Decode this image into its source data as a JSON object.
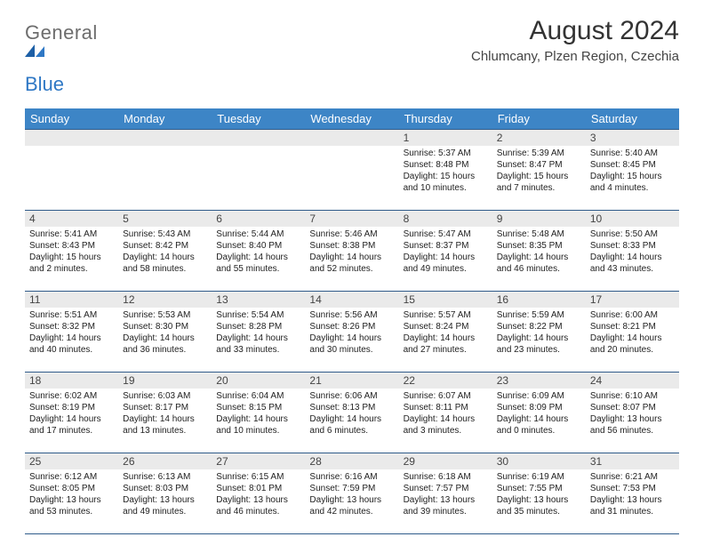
{
  "colors": {
    "header_bg": "#3d85c6",
    "header_text": "#ffffff",
    "row_border": "#2f5b8a",
    "daynum_bg": "#eaeaea",
    "body_text": "#222222",
    "logo_accent": "#2f78c5"
  },
  "logo": {
    "word1": "General",
    "word2": "Blue"
  },
  "title": "August 2024",
  "subtitle": "Chlumcany, Plzen Region, Czechia",
  "weekdays": [
    "Sunday",
    "Monday",
    "Tuesday",
    "Wednesday",
    "Thursday",
    "Friday",
    "Saturday"
  ],
  "weeks": [
    [
      {
        "n": "",
        "sr": "",
        "ss": "",
        "dl": ""
      },
      {
        "n": "",
        "sr": "",
        "ss": "",
        "dl": ""
      },
      {
        "n": "",
        "sr": "",
        "ss": "",
        "dl": ""
      },
      {
        "n": "",
        "sr": "",
        "ss": "",
        "dl": ""
      },
      {
        "n": "1",
        "sr": "Sunrise: 5:37 AM",
        "ss": "Sunset: 8:48 PM",
        "dl": "Daylight: 15 hours and 10 minutes."
      },
      {
        "n": "2",
        "sr": "Sunrise: 5:39 AM",
        "ss": "Sunset: 8:47 PM",
        "dl": "Daylight: 15 hours and 7 minutes."
      },
      {
        "n": "3",
        "sr": "Sunrise: 5:40 AM",
        "ss": "Sunset: 8:45 PM",
        "dl": "Daylight: 15 hours and 4 minutes."
      }
    ],
    [
      {
        "n": "4",
        "sr": "Sunrise: 5:41 AM",
        "ss": "Sunset: 8:43 PM",
        "dl": "Daylight: 15 hours and 2 minutes."
      },
      {
        "n": "5",
        "sr": "Sunrise: 5:43 AM",
        "ss": "Sunset: 8:42 PM",
        "dl": "Daylight: 14 hours and 58 minutes."
      },
      {
        "n": "6",
        "sr": "Sunrise: 5:44 AM",
        "ss": "Sunset: 8:40 PM",
        "dl": "Daylight: 14 hours and 55 minutes."
      },
      {
        "n": "7",
        "sr": "Sunrise: 5:46 AM",
        "ss": "Sunset: 8:38 PM",
        "dl": "Daylight: 14 hours and 52 minutes."
      },
      {
        "n": "8",
        "sr": "Sunrise: 5:47 AM",
        "ss": "Sunset: 8:37 PM",
        "dl": "Daylight: 14 hours and 49 minutes."
      },
      {
        "n": "9",
        "sr": "Sunrise: 5:48 AM",
        "ss": "Sunset: 8:35 PM",
        "dl": "Daylight: 14 hours and 46 minutes."
      },
      {
        "n": "10",
        "sr": "Sunrise: 5:50 AM",
        "ss": "Sunset: 8:33 PM",
        "dl": "Daylight: 14 hours and 43 minutes."
      }
    ],
    [
      {
        "n": "11",
        "sr": "Sunrise: 5:51 AM",
        "ss": "Sunset: 8:32 PM",
        "dl": "Daylight: 14 hours and 40 minutes."
      },
      {
        "n": "12",
        "sr": "Sunrise: 5:53 AM",
        "ss": "Sunset: 8:30 PM",
        "dl": "Daylight: 14 hours and 36 minutes."
      },
      {
        "n": "13",
        "sr": "Sunrise: 5:54 AM",
        "ss": "Sunset: 8:28 PM",
        "dl": "Daylight: 14 hours and 33 minutes."
      },
      {
        "n": "14",
        "sr": "Sunrise: 5:56 AM",
        "ss": "Sunset: 8:26 PM",
        "dl": "Daylight: 14 hours and 30 minutes."
      },
      {
        "n": "15",
        "sr": "Sunrise: 5:57 AM",
        "ss": "Sunset: 8:24 PM",
        "dl": "Daylight: 14 hours and 27 minutes."
      },
      {
        "n": "16",
        "sr": "Sunrise: 5:59 AM",
        "ss": "Sunset: 8:22 PM",
        "dl": "Daylight: 14 hours and 23 minutes."
      },
      {
        "n": "17",
        "sr": "Sunrise: 6:00 AM",
        "ss": "Sunset: 8:21 PM",
        "dl": "Daylight: 14 hours and 20 minutes."
      }
    ],
    [
      {
        "n": "18",
        "sr": "Sunrise: 6:02 AM",
        "ss": "Sunset: 8:19 PM",
        "dl": "Daylight: 14 hours and 17 minutes."
      },
      {
        "n": "19",
        "sr": "Sunrise: 6:03 AM",
        "ss": "Sunset: 8:17 PM",
        "dl": "Daylight: 14 hours and 13 minutes."
      },
      {
        "n": "20",
        "sr": "Sunrise: 6:04 AM",
        "ss": "Sunset: 8:15 PM",
        "dl": "Daylight: 14 hours and 10 minutes."
      },
      {
        "n": "21",
        "sr": "Sunrise: 6:06 AM",
        "ss": "Sunset: 8:13 PM",
        "dl": "Daylight: 14 hours and 6 minutes."
      },
      {
        "n": "22",
        "sr": "Sunrise: 6:07 AM",
        "ss": "Sunset: 8:11 PM",
        "dl": "Daylight: 14 hours and 3 minutes."
      },
      {
        "n": "23",
        "sr": "Sunrise: 6:09 AM",
        "ss": "Sunset: 8:09 PM",
        "dl": "Daylight: 14 hours and 0 minutes."
      },
      {
        "n": "24",
        "sr": "Sunrise: 6:10 AM",
        "ss": "Sunset: 8:07 PM",
        "dl": "Daylight: 13 hours and 56 minutes."
      }
    ],
    [
      {
        "n": "25",
        "sr": "Sunrise: 6:12 AM",
        "ss": "Sunset: 8:05 PM",
        "dl": "Daylight: 13 hours and 53 minutes."
      },
      {
        "n": "26",
        "sr": "Sunrise: 6:13 AM",
        "ss": "Sunset: 8:03 PM",
        "dl": "Daylight: 13 hours and 49 minutes."
      },
      {
        "n": "27",
        "sr": "Sunrise: 6:15 AM",
        "ss": "Sunset: 8:01 PM",
        "dl": "Daylight: 13 hours and 46 minutes."
      },
      {
        "n": "28",
        "sr": "Sunrise: 6:16 AM",
        "ss": "Sunset: 7:59 PM",
        "dl": "Daylight: 13 hours and 42 minutes."
      },
      {
        "n": "29",
        "sr": "Sunrise: 6:18 AM",
        "ss": "Sunset: 7:57 PM",
        "dl": "Daylight: 13 hours and 39 minutes."
      },
      {
        "n": "30",
        "sr": "Sunrise: 6:19 AM",
        "ss": "Sunset: 7:55 PM",
        "dl": "Daylight: 13 hours and 35 minutes."
      },
      {
        "n": "31",
        "sr": "Sunrise: 6:21 AM",
        "ss": "Sunset: 7:53 PM",
        "dl": "Daylight: 13 hours and 31 minutes."
      }
    ]
  ]
}
